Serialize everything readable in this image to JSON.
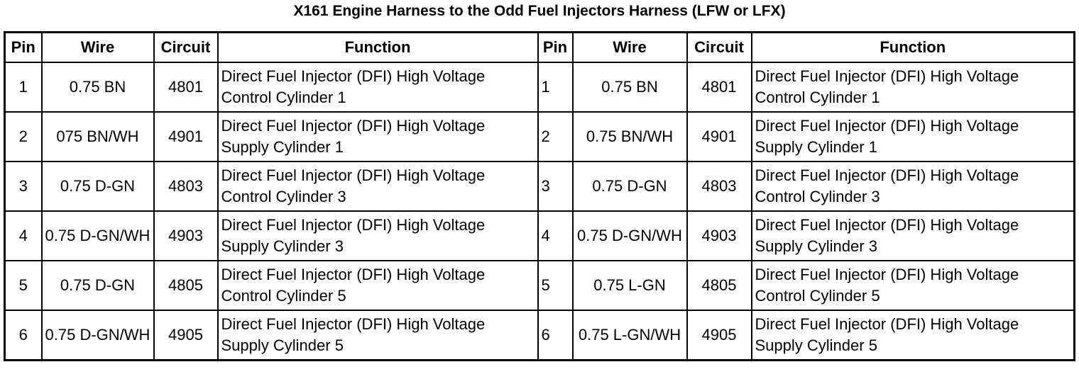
{
  "title": "X161 Engine Harness to the Odd Fuel Injectors Harness (LFW or LFX)",
  "table": {
    "header": [
      "Pin",
      "Wire",
      "Circuit",
      "Function",
      "Pin",
      "Wire",
      "Circuit",
      "Function"
    ],
    "rows": [
      [
        "1",
        "0.75 BN",
        "4801",
        "Direct Fuel Injector (DFI) High Voltage Control Cylinder 1",
        "1",
        "0.75 BN",
        "4801",
        "Direct Fuel Injector (DFI) High Voltage Control Cylinder 1"
      ],
      [
        "2",
        "075 BN/WH",
        "4901",
        "Direct Fuel Injector (DFI) High Voltage Supply Cylinder 1",
        "2",
        "0.75 BN/WH",
        "4901",
        "Direct Fuel Injector (DFI) High Voltage Supply Cylinder 1"
      ],
      [
        "3",
        "0.75 D-GN",
        "4803",
        "Direct Fuel Injector (DFI) High Voltage Control Cylinder 3",
        "3",
        "0.75 D-GN",
        "4803",
        "Direct Fuel Injector (DFI) High Voltage Control Cylinder 3"
      ],
      [
        "4",
        "0.75 D-GN/WH",
        "4903",
        "Direct Fuel Injector (DFI) High Voltage Supply Cylinder 3",
        "4",
        "0.75 D-GN/WH",
        "4903",
        "Direct Fuel Injector (DFI) High Voltage Supply Cylinder 3"
      ],
      [
        "5",
        "0.75 D-GN",
        "4805",
        "Direct Fuel Injector (DFI) High Voltage Control Cylinder 5",
        "5",
        "0.75 L-GN",
        "4805",
        "Direct Fuel Injector (DFI) High Voltage Control Cylinder 5"
      ],
      [
        "6",
        "0.75 D-GN/WH",
        "4905",
        "Direct Fuel Injector (DFI) High Voltage Supply Cylinder 5",
        "6",
        "0.75 L-GN/WH",
        "4905",
        "Direct Fuel Injector (DFI) High Voltage Supply Cylinder 5"
      ]
    ]
  }
}
